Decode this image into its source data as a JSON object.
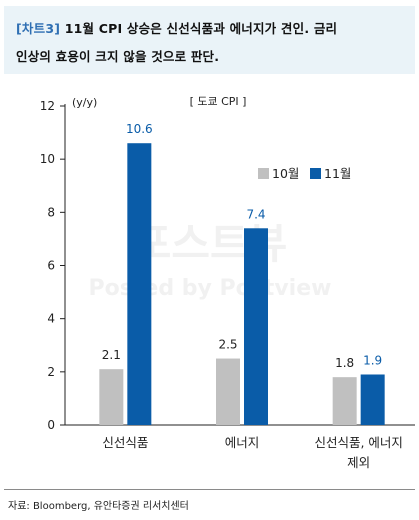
{
  "header": {
    "tag": "[차트3]",
    "line1": "11월 CPI 상승은 신선식품과 에너지가 견인. 금리",
    "line2": "인상의 효용이 크지 않을 것으로 판단."
  },
  "watermark": {
    "main": "포스트뷰",
    "sub": "Posted by Postview"
  },
  "chart_data": {
    "type": "bar",
    "title": "[ 도쿄 CPI ]",
    "ylabel": "(y/y)",
    "ylim": [
      0,
      12
    ],
    "yticks": [
      0,
      2,
      4,
      6,
      8,
      10,
      12
    ],
    "grid": false,
    "legend_position": "right",
    "categories": [
      [
        "신선식품"
      ],
      [
        "에너지"
      ],
      [
        "신선식품, 에너지",
        "제외"
      ]
    ],
    "series": [
      {
        "name": "10월",
        "color": "#c0c0c0",
        "values": [
          2.1,
          2.5,
          1.8
        ],
        "labels": [
          "2.1",
          "2.5",
          "1.8"
        ]
      },
      {
        "name": "11월",
        "color": "#0a5ca8",
        "values": [
          10.6,
          7.4,
          1.9
        ],
        "labels": [
          "10.6",
          "7.4",
          "1.9"
        ]
      }
    ]
  },
  "footer": {
    "source": "자료: Bloomberg, 유안타증권 리서치센터"
  }
}
